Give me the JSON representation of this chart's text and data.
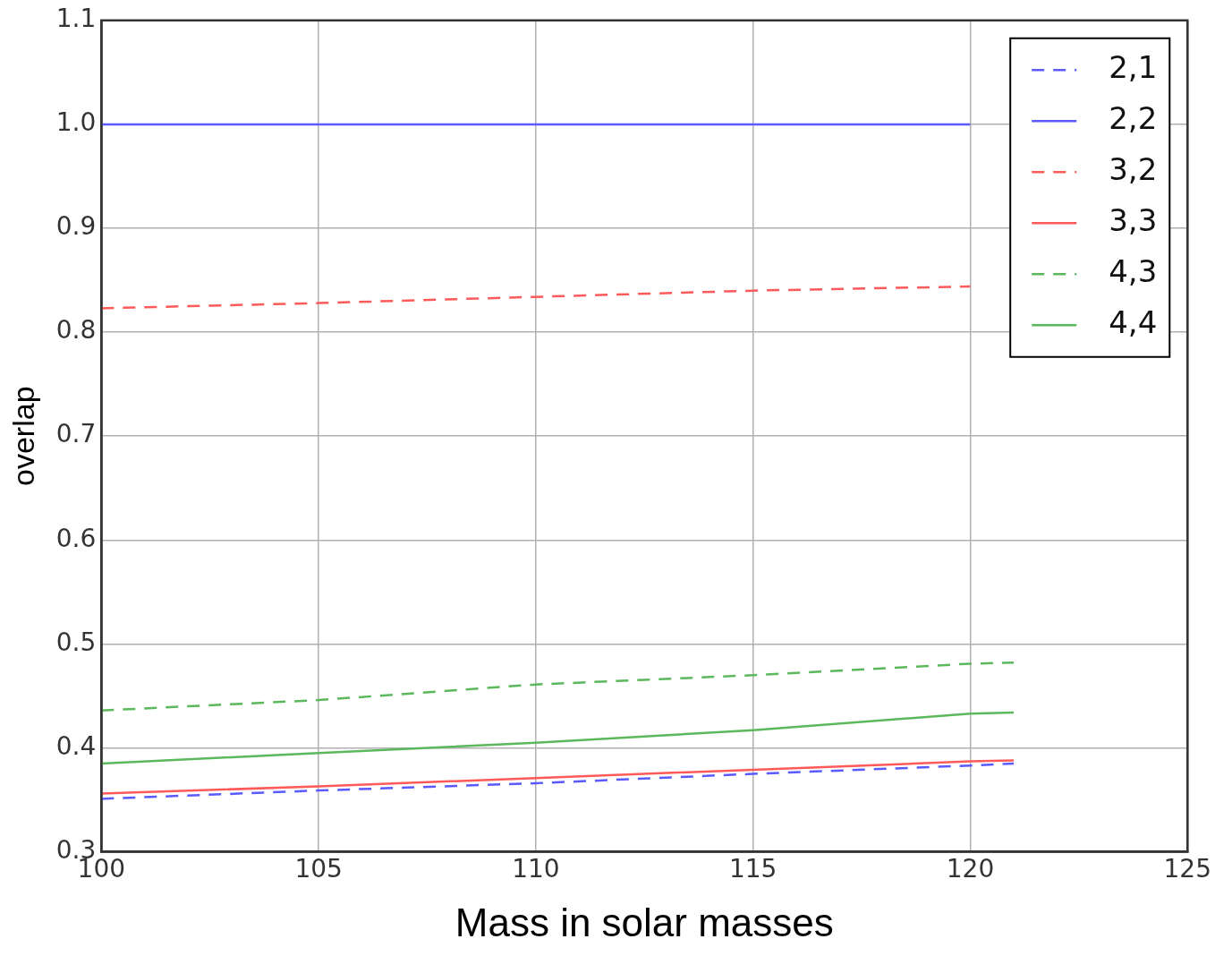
{
  "chart_data": {
    "type": "line",
    "xlabel": "Mass in solar masses",
    "ylabel": "overlap",
    "x": [
      100,
      105,
      110,
      115,
      120,
      121
    ],
    "series": [
      {
        "name": "2,1",
        "color": "#5a5aff",
        "line_style": "dashed",
        "values": [
          0.351,
          0.359,
          0.366,
          0.375,
          0.383,
          0.385
        ]
      },
      {
        "name": "2,2",
        "color": "#5a5aff",
        "line_style": "solid",
        "values": [
          1.0,
          1.0,
          1.0,
          1.0,
          1.0,
          null
        ]
      },
      {
        "name": "3,2",
        "color": "#ff5a5a",
        "line_style": "dashed",
        "values": [
          0.823,
          0.828,
          0.834,
          0.84,
          0.844,
          null
        ]
      },
      {
        "name": "3,3",
        "color": "#ff5a5a",
        "line_style": "solid",
        "values": [
          0.356,
          0.363,
          0.371,
          0.379,
          0.387,
          0.388
        ]
      },
      {
        "name": "4,3",
        "color": "#5cb85c",
        "line_style": "dashed",
        "values": [
          0.436,
          0.446,
          0.461,
          0.47,
          0.481,
          0.482
        ]
      },
      {
        "name": "4,4",
        "color": "#5cb85c",
        "line_style": "solid",
        "values": [
          0.385,
          0.395,
          0.405,
          0.417,
          0.433,
          0.434
        ]
      }
    ],
    "xlim": [
      100,
      125
    ],
    "xticks": [
      100,
      105,
      110,
      115,
      120,
      125
    ],
    "ylim": [
      0.3,
      1.1
    ],
    "yticks": [
      0.3,
      0.4,
      0.5,
      0.6,
      0.7,
      0.8,
      0.9,
      {
        "value": 1.0,
        "label": "1.0"
      },
      1.1
    ],
    "grid": true,
    "legend": "top right",
    "marker": "none"
  }
}
